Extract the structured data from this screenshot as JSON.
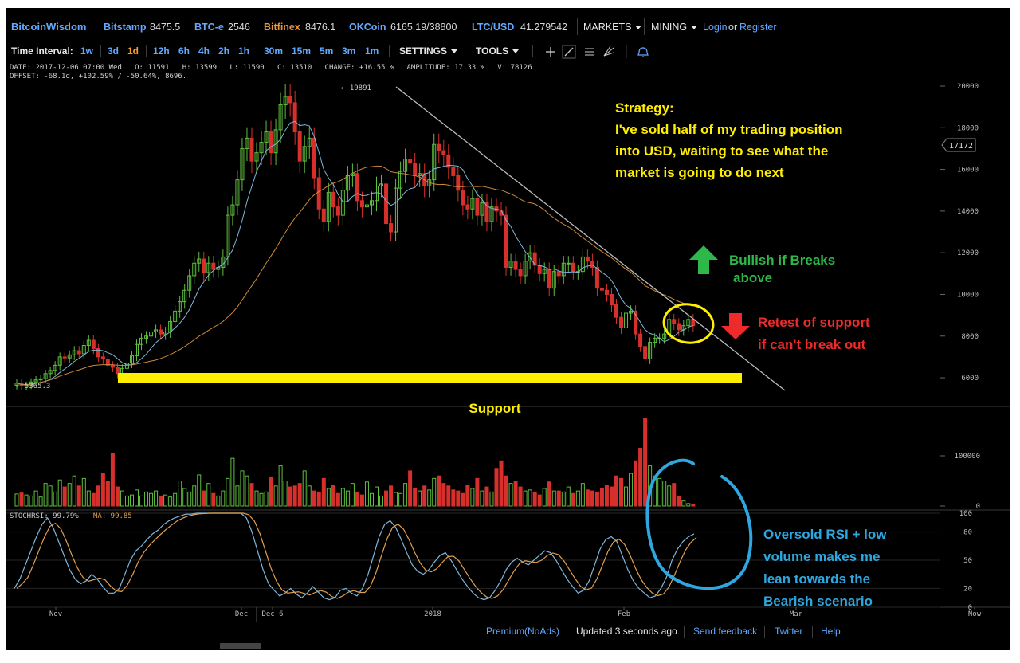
{
  "topbar": {
    "brand": "BitcoinWisdom",
    "tickers": [
      {
        "name": "Bitstamp",
        "value": "8475.5"
      },
      {
        "name": "BTC-e",
        "value": "2546"
      },
      {
        "name": "Bitfinex",
        "value": "8476.1"
      },
      {
        "name": "OKCoin",
        "value": "6165.19/38800"
      },
      {
        "name": "LTC/USD",
        "value": "41.279542"
      }
    ],
    "markets_label": "MARKETS",
    "mining_label": "MINING",
    "login_label": "Login",
    "or_label": "or",
    "register_label": "Register"
  },
  "toolbar": {
    "time_interval_label": "Time Interval:",
    "intervals": [
      "1w",
      "3d",
      "1d",
      "12h",
      "6h",
      "4h",
      "2h",
      "1h",
      "30m",
      "15m",
      "5m",
      "3m",
      "1m"
    ],
    "active_interval": "1d",
    "settings_label": "SETTINGS",
    "tools_label": "TOOLS",
    "tool_icons": [
      "crosshair-icon",
      "line-tool-icon",
      "hlines-icon",
      "fib-tool-icon",
      "bell-icon"
    ]
  },
  "info": {
    "line1": "DATE: 2017-12-06 07:00 Wed   O: 11591   H: 13599   L: 11590   C: 13510   CHANGE: +16.55 %   AMPLITUDE: 17.33 %   V: 78126",
    "line2": "OFFSET: -68.1d, +102.59% / -50.64%, 8696."
  },
  "chart_data": {
    "type": "candlestick",
    "price_axis": {
      "ticks": [
        "20000",
        "18000",
        "16000",
        "14000",
        "12000",
        "10000",
        "8000",
        "6000"
      ],
      "ylim": [
        5000,
        20500
      ]
    },
    "volume_axis": {
      "ticks": [
        "100000",
        "0"
      ],
      "ylim": [
        0,
        180000
      ]
    },
    "rsi_axis": {
      "ticks": [
        "100",
        "80",
        "50",
        "20",
        "0"
      ],
      "ylim": [
        0,
        100
      ]
    },
    "x_labels": [
      "Nov",
      "Dec",
      "Dec 6",
      "2018",
      "Feb",
      "Mar",
      "Now"
    ],
    "current_price_tag": "17172",
    "high_label": "19891",
    "low_label": "5365.3",
    "stochrsi_label": "STOCHRSI: 99.79%",
    "ma_label": "MA: 99.85",
    "closes": [
      5750,
      5600,
      5650,
      5800,
      5900,
      5950,
      6200,
      6350,
      6600,
      7000,
      6950,
      7100,
      7300,
      7150,
      7550,
      7800,
      7400,
      7000,
      6900,
      6600,
      6500,
      6200,
      6450,
      6700,
      7050,
      7600,
      7900,
      8000,
      8200,
      8300,
      8100,
      8200,
      8700,
      9200,
      9650,
      10200,
      10900,
      11500,
      11700,
      11050,
      11500,
      11200,
      11300,
      11800,
      13800,
      14300,
      15500,
      17000,
      17500,
      16400,
      16800,
      17300,
      17800,
      16800,
      17900,
      19100,
      19500,
      19200,
      17800,
      16400,
      17100,
      17500,
      15600,
      14100,
      13500,
      14900,
      14200,
      13800,
      15000,
      15700,
      15800,
      14500,
      14200,
      14300,
      14500,
      15200,
      15300,
      13400,
      13000,
      15100,
      15900,
      16500,
      16300,
      15700,
      15800,
      15200,
      15500,
      17200,
      16900,
      16700,
      16100,
      15700,
      15000,
      14300,
      14100,
      14600,
      13800,
      14400,
      13500,
      14200,
      14000,
      13800,
      11300,
      11600,
      11200,
      10900,
      11600,
      12000,
      11400,
      11000,
      11200,
      10300,
      11100,
      10900,
      11500,
      11500,
      11100,
      11100,
      11800,
      11600,
      11300,
      10300,
      10200,
      10000,
      9500,
      8900,
      8400,
      9100,
      9200,
      8100,
      7500,
      6900,
      7700,
      7900,
      7900,
      8100,
      8800,
      8600,
      8300,
      8500,
      8800,
      8500
    ],
    "volume": [
      24000,
      26000,
      22000,
      20000,
      30000,
      18000,
      45000,
      40000,
      28000,
      52000,
      38000,
      45000,
      60000,
      40000,
      55000,
      30000,
      25000,
      40000,
      65000,
      50000,
      105000,
      38000,
      30000,
      20000,
      22000,
      32000,
      20000,
      28000,
      25000,
      30000,
      20000,
      22000,
      18000,
      25000,
      50000,
      35000,
      28000,
      40000,
      62000,
      30000,
      45000,
      25000,
      20000,
      30000,
      55000,
      95000,
      40000,
      70000,
      60000,
      45000,
      30000,
      25000,
      28000,
      58000,
      40000,
      80000,
      50000,
      38000,
      40000,
      45000,
      70000,
      40000,
      30000,
      28000,
      55000,
      35000,
      42000,
      25000,
      35000,
      30000,
      45000,
      28000,
      22000,
      48000,
      25000,
      38000,
      20000,
      30000,
      40000,
      27000,
      25000,
      45000,
      70000,
      35000,
      30000,
      40000,
      32000,
      55000,
      60000,
      45000,
      40000,
      32000,
      30000,
      25000,
      42000,
      35000,
      55000,
      30000,
      38000,
      28000,
      75000,
      90000,
      60000,
      45000,
      50000,
      38000,
      30000,
      32000,
      28000,
      22000,
      35000,
      48000,
      30000,
      30000,
      28000,
      38000,
      25000,
      30000,
      45000,
      32000,
      30000,
      28000,
      35000,
      42000,
      38000,
      60000,
      55000,
      38000,
      65000,
      90000,
      115000,
      175000,
      80000,
      60000,
      55000,
      50000,
      40000,
      45000,
      20000,
      10000,
      5000,
      4000
    ],
    "stochrsi": [
      20,
      30,
      45,
      60,
      75,
      88,
      95,
      85,
      70,
      55,
      40,
      30,
      25,
      28,
      35,
      30,
      22,
      15,
      15,
      20,
      35,
      50,
      60,
      65,
      72,
      78,
      82,
      88,
      92,
      95,
      97,
      99,
      99,
      100,
      100,
      100,
      100,
      100,
      100,
      100,
      100,
      100,
      95,
      80,
      60,
      40,
      25,
      18,
      12,
      15,
      20,
      14,
      10,
      15,
      22,
      16,
      10,
      8,
      10,
      18,
      20,
      15,
      12,
      20,
      35,
      55,
      75,
      88,
      92,
      85,
      72,
      58,
      45,
      38,
      35,
      40,
      48,
      55,
      58,
      50,
      40,
      30,
      22,
      15,
      10,
      8,
      10,
      18,
      28,
      40,
      48,
      52,
      48,
      45,
      50,
      55,
      60,
      58,
      50,
      40,
      30,
      22,
      15,
      18,
      28,
      45,
      62,
      72,
      75,
      70,
      55,
      40,
      28,
      20,
      15,
      10,
      12,
      20,
      32,
      50,
      62,
      70,
      75,
      78
    ]
  },
  "annotations": {
    "strategy_title": "Strategy:",
    "strategy_lines": [
      "I've sold half of my trading position",
      "into USD, waiting to see what the",
      "market is going to do next"
    ],
    "bullish_lines": [
      "Bullish if Breaks",
      "above"
    ],
    "bearish_lines": [
      "Retest of support",
      "if can't break out"
    ],
    "support_label": "Support",
    "rsi_note_lines": [
      "Oversold RSI + low",
      "volume makes me",
      "lean towards the",
      "Bearish scenario"
    ]
  },
  "colors": {
    "up": "#5fbf3f",
    "down": "#d7302c",
    "ma_fast": "#7fb6d8",
    "ma_slow": "#c98a3c",
    "highlight_yellow": "#ffee00",
    "annotation_green": "#2eb84a",
    "annotation_red": "#ee2a2a",
    "circle_blue": "#2ea7e0"
  },
  "footer": {
    "premium_label": "Premium(NoAds)",
    "updated_label": "Updated 3 seconds ago",
    "feedback_label": "Send feedback",
    "twitter_label": "Twitter",
    "help_label": "Help"
  }
}
